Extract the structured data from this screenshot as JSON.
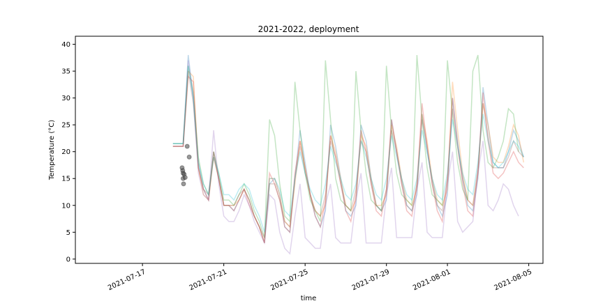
{
  "chart_data": {
    "type": "line",
    "title": "2021-2022, deployment",
    "xlabel": "time",
    "ylabel": "Temperature (°C)",
    "x_ticks": [
      "2021-07-17",
      "2021-07-21",
      "2021-07-25",
      "2021-07-29",
      "2021-08-01",
      "2021-08-05"
    ],
    "x_tick_days": [
      0,
      4,
      8,
      12,
      15,
      19
    ],
    "xlim_days": [
      -3.3,
      19.7
    ],
    "y_ticks": [
      0,
      5,
      10,
      15,
      20,
      25,
      30,
      35,
      40
    ],
    "ylim": [
      -0.8,
      41.5
    ],
    "grid": false,
    "legend": "none",
    "time_start": "2021-07-18 12:00",
    "time_step_hours": 6,
    "series": [
      {
        "color": "#1f77b4",
        "values": [
          21.5,
          21.5,
          21.5,
          38,
          30,
          18,
          13,
          11,
          20,
          15,
          10,
          10,
          9,
          11,
          13,
          11,
          8,
          6,
          3,
          14,
          15,
          12,
          6,
          5,
          15,
          24,
          18,
          12,
          8,
          6,
          9,
          25,
          21,
          15,
          9,
          8,
          10,
          25,
          22,
          15,
          10,
          9,
          11,
          26,
          20,
          15,
          10,
          9,
          12,
          27,
          20,
          15,
          10,
          8,
          12,
          30,
          22,
          15,
          10,
          9,
          15,
          32,
          25,
          18,
          17,
          17,
          20,
          24,
          22,
          19
        ]
      },
      {
        "color": "#ff7f0e",
        "values": [
          21,
          21,
          21,
          35,
          34,
          17,
          12,
          11,
          19,
          15,
          10,
          10,
          10,
          11,
          13,
          11,
          8,
          6,
          3,
          15,
          15,
          12,
          7,
          6,
          14,
          22,
          17,
          12,
          9,
          8,
          10,
          23,
          20,
          15,
          10,
          9,
          11,
          23,
          21,
          15,
          10,
          10,
          12,
          25,
          21,
          15,
          11,
          10,
          13,
          27,
          22,
          15,
          11,
          10,
          13,
          33,
          24,
          16,
          11,
          10,
          16,
          29,
          25,
          19,
          18,
          18,
          21,
          25,
          23,
          18
        ]
      },
      {
        "color": "#2ca02c",
        "values": [
          21.5,
          21.5,
          21.5,
          36,
          31,
          19,
          14,
          12,
          20,
          16,
          11,
          11,
          10,
          12,
          14,
          12,
          9,
          7,
          4,
          26,
          23,
          14,
          8,
          7,
          33,
          24,
          16,
          11,
          9,
          7,
          37,
          26,
          15,
          11,
          10,
          9,
          35,
          24,
          16,
          11,
          10,
          9,
          36,
          24,
          16,
          12,
          11,
          10,
          38,
          26,
          17,
          12,
          11,
          10,
          37,
          27,
          18,
          13,
          11,
          35,
          38,
          24,
          18,
          17,
          19,
          22,
          28,
          27,
          20
        ]
      },
      {
        "color": "#d62728",
        "values": [
          21,
          21,
          21,
          34,
          33,
          17,
          13,
          11,
          20,
          15,
          10,
          10,
          9,
          11,
          13,
          10,
          8,
          6,
          3,
          16,
          14,
          11,
          6,
          5,
          16,
          22,
          17,
          12,
          8,
          6,
          11,
          23,
          19,
          14,
          9,
          7,
          12,
          24,
          20,
          14,
          9,
          8,
          13,
          26,
          20,
          14,
          9,
          8,
          14,
          29,
          21,
          14,
          9,
          7,
          15,
          30,
          21,
          14,
          9,
          8,
          16,
          31,
          22,
          16,
          15,
          16,
          18,
          20,
          18,
          17
        ]
      },
      {
        "color": "#9467bd",
        "values": [
          21,
          21,
          21,
          37,
          30,
          16,
          12,
          11,
          24,
          14,
          8,
          7,
          7,
          9,
          12,
          10,
          7,
          5,
          3,
          12,
          11,
          5,
          2,
          1,
          8,
          14,
          4,
          3,
          2,
          2,
          10,
          14,
          4,
          3,
          3,
          3,
          11,
          16,
          3,
          3,
          3,
          3,
          12,
          17,
          4,
          4,
          4,
          4,
          13,
          18,
          5,
          4,
          4,
          4,
          14,
          20,
          7,
          5,
          6,
          7,
          16,
          22,
          10,
          9,
          11,
          14,
          13,
          10,
          8
        ]
      },
      {
        "color": "#8c564b",
        "values": [
          21,
          21,
          21,
          35,
          29,
          17,
          13,
          12,
          19,
          15,
          10,
          10,
          10,
          12,
          13,
          11,
          8,
          6,
          4,
          14,
          14,
          11,
          7,
          6,
          15,
          21,
          16,
          12,
          9,
          8,
          12,
          22,
          19,
          14,
          10,
          9,
          13,
          22,
          20,
          14,
          10,
          9,
          13,
          24,
          20,
          14,
          10,
          9,
          14,
          26,
          21,
          14,
          10,
          9,
          15,
          28,
          21,
          15,
          11,
          10,
          17,
          29,
          23,
          17,
          17,
          17,
          19,
          22,
          20,
          19
        ]
      },
      {
        "color": "#17becf",
        "values": [
          21.5,
          21.5,
          21.5,
          36,
          30,
          18,
          14,
          12,
          19,
          16,
          12,
          12,
          11,
          13,
          14,
          13,
          10,
          8,
          5,
          15,
          15,
          13,
          9,
          8,
          15,
          20,
          16,
          13,
          11,
          10,
          14,
          21,
          18,
          15,
          12,
          11,
          14,
          22,
          19,
          15,
          12,
          11,
          15,
          23,
          19,
          15,
          12,
          11,
          15,
          24,
          20,
          15,
          12,
          11,
          16,
          26,
          21,
          16,
          13,
          12,
          18,
          27,
          22,
          18,
          17,
          18,
          20,
          22,
          21,
          19
        ]
      }
    ],
    "points": [
      {
        "x": 1.95,
        "y": 17
      },
      {
        "x": 1.98,
        "y": 16.5
      },
      {
        "x": 2.0,
        "y": 15
      },
      {
        "x": 2.02,
        "y": 14
      },
      {
        "x": 2.05,
        "y": 15.8
      },
      {
        "x": 2.1,
        "y": 15.2
      },
      {
        "x": 2.2,
        "y": 21
      },
      {
        "x": 2.3,
        "y": 19
      },
      {
        "x": 2.0,
        "y": 16
      }
    ]
  }
}
